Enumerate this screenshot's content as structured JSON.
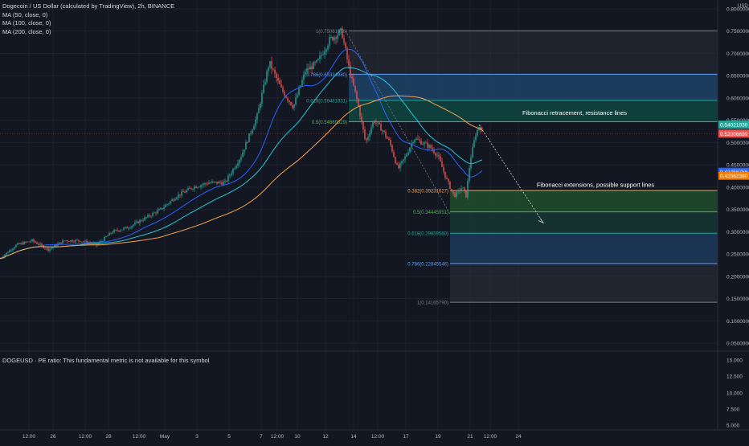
{
  "header": {
    "title": "Dogecoin / US Dollar (calculated by TradingView), 2h, BINANCE",
    "indicators": [
      "MA (50, close, 0)",
      "MA (100, close, 0)",
      "MA (200, close, 0)"
    ]
  },
  "price_axis": {
    "currency": "USD",
    "ticks": [
      "0.80000000",
      "0.75000000",
      "0.70000000",
      "0.65000000",
      "0.60000000",
      "0.55000000",
      "0.50000000",
      "0.45000000",
      "0.40000000",
      "0.35000000",
      "0.30000000",
      "0.25000000",
      "0.20000000",
      "0.15000000",
      "0.10000000",
      "0.05000000"
    ],
    "ticks_value": [
      0.8,
      0.75,
      0.7,
      0.65,
      0.6,
      0.55,
      0.5,
      0.45,
      0.4,
      0.35,
      0.3,
      0.25,
      0.2,
      0.15,
      0.1,
      0.05
    ],
    "labels": [
      {
        "text": "0.54021030",
        "value": 0.5402,
        "color": "#26a69a"
      },
      {
        "text": "0.52006699",
        "value": 0.5201,
        "color": "#ef5350"
      },
      {
        "text": "0.43456756",
        "value": 0.4346,
        "color": "#2962ff"
      },
      {
        "text": "0.42562380",
        "value": 0.4256,
        "color": "#f57c00"
      }
    ]
  },
  "time_axis": {
    "labels": [
      "12:00",
      "26",
      "12:00",
      "28",
      "12:00",
      "May",
      "3",
      "5",
      "7",
      "12:00",
      "10",
      "12",
      "14",
      "12:00",
      "17",
      "19",
      "21",
      "12:00",
      "24"
    ],
    "label_index": [
      16,
      46,
      86,
      115,
      153,
      185,
      225,
      265,
      305,
      325,
      350,
      385,
      420,
      450,
      485,
      525,
      565,
      590,
      625
    ]
  },
  "fib_retracement": {
    "levels": [
      {
        "label": "1(0.75061066)",
        "value": 0.7506
      },
      {
        "label": "0.786(0.65334980)",
        "value": 0.6533
      },
      {
        "label": "0.618(0.59481931)",
        "value": 0.5948
      },
      {
        "label": "0.5(0.54669529)",
        "value": 0.5467
      }
    ],
    "annotation": "Fibonacci retracement, resistance lines"
  },
  "fib_extension": {
    "levels": [
      {
        "label": "0.382(0.39231627)",
        "value": 0.3923
      },
      {
        "label": "0.5(0.34445951)",
        "value": 0.3445
      },
      {
        "label": "0.618(0.29659560)",
        "value": 0.2966
      },
      {
        "label": "0.786(0.22845546)",
        "value": 0.2285
      },
      {
        "label": "1(0.14165790)",
        "value": 0.1417
      }
    ],
    "annotation": "Fibonacci extensions, possible support lines"
  },
  "sub_pane": {
    "title": "DOGEUSD · PE ratio: This fundamental metric is not available for this symbol",
    "ticks": [
      "15.000",
      "12.500",
      "10.000",
      "7.500",
      "5.000"
    ]
  },
  "colors": {
    "background": "#131722",
    "up": "#26a69a",
    "down": "#ef5350",
    "ma50": "#2962ff",
    "ma100": "#26c6da",
    "ma200": "#f7a24b",
    "fib_retr_band": "#1e3a5f",
    "fib_ext_green": "#1b4332",
    "fib_gray": "#2a2e39"
  },
  "chart_data": {
    "type": "candlestick",
    "symbol": "Dogecoin / US Dollar",
    "interval": "2h",
    "ylim": [
      0.05,
      0.8
    ],
    "approx_path": [
      {
        "bar": 0,
        "price": 0.24
      },
      {
        "bar": 20,
        "price": 0.27
      },
      {
        "bar": 40,
        "price": 0.28
      },
      {
        "bar": 60,
        "price": 0.26
      },
      {
        "bar": 80,
        "price": 0.28
      },
      {
        "bar": 100,
        "price": 0.28
      },
      {
        "bar": 120,
        "price": 0.27
      },
      {
        "bar": 140,
        "price": 0.3
      },
      {
        "bar": 160,
        "price": 0.31
      },
      {
        "bar": 180,
        "price": 0.33
      },
      {
        "bar": 200,
        "price": 0.35
      },
      {
        "bar": 220,
        "price": 0.38
      },
      {
        "bar": 240,
        "price": 0.4
      },
      {
        "bar": 260,
        "price": 0.41
      },
      {
        "bar": 280,
        "price": 0.41
      },
      {
        "bar": 300,
        "price": 0.47
      },
      {
        "bar": 320,
        "price": 0.56
      },
      {
        "bar": 335,
        "price": 0.68
      },
      {
        "bar": 350,
        "price": 0.62
      },
      {
        "bar": 365,
        "price": 0.58
      },
      {
        "bar": 380,
        "price": 0.66
      },
      {
        "bar": 395,
        "price": 0.68
      },
      {
        "bar": 410,
        "price": 0.73
      },
      {
        "bar": 425,
        "price": 0.75
      },
      {
        "bar": 435,
        "price": 0.66
      },
      {
        "bar": 445,
        "price": 0.59
      },
      {
        "bar": 455,
        "price": 0.5
      },
      {
        "bar": 465,
        "price": 0.55
      },
      {
        "bar": 475,
        "price": 0.53
      },
      {
        "bar": 485,
        "price": 0.5
      },
      {
        "bar": 495,
        "price": 0.44
      },
      {
        "bar": 505,
        "price": 0.47
      },
      {
        "bar": 515,
        "price": 0.51
      },
      {
        "bar": 525,
        "price": 0.5
      },
      {
        "bar": 535,
        "price": 0.49
      },
      {
        "bar": 545,
        "price": 0.47
      },
      {
        "bar": 555,
        "price": 0.42
      },
      {
        "bar": 565,
        "price": 0.38
      },
      {
        "bar": 575,
        "price": 0.4
      },
      {
        "bar": 580,
        "price": 0.38
      },
      {
        "bar": 585,
        "price": 0.46
      },
      {
        "bar": 592,
        "price": 0.52
      },
      {
        "bar": 597,
        "price": 0.54
      },
      {
        "bar": 600,
        "price": 0.52
      }
    ]
  }
}
